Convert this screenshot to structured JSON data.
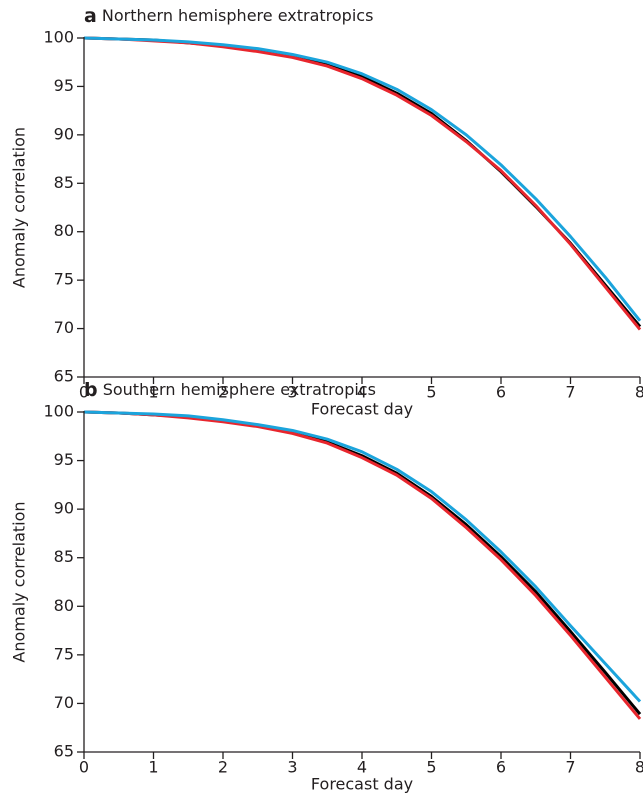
{
  "chart_data": [
    {
      "type": "line",
      "panel": "a",
      "title": "Northern hemisphere extratropics",
      "xlabel": "Forecast day",
      "ylabel": "Anomaly correlation",
      "x": [
        0,
        0.5,
        1,
        1.5,
        2,
        2.5,
        3,
        3.5,
        4,
        4.5,
        5,
        5.5,
        6,
        6.5,
        7,
        7.5,
        8
      ],
      "series": [
        {
          "color": "#000000",
          "values": [
            100,
            99.9,
            99.8,
            99.5,
            99.2,
            98.7,
            98.1,
            97.2,
            96.0,
            94.3,
            92.2,
            89.4,
            86.2,
            82.6,
            78.8,
            74.5,
            70.2
          ]
        },
        {
          "color": "#e8262d",
          "values": [
            100,
            99.9,
            99.7,
            99.5,
            99.1,
            98.6,
            98.0,
            97.1,
            95.8,
            94.1,
            92.0,
            89.3,
            86.3,
            82.7,
            78.7,
            74.3,
            69.9
          ]
        },
        {
          "color": "#1ba4dc",
          "values": [
            100,
            99.9,
            99.8,
            99.6,
            99.3,
            98.9,
            98.3,
            97.5,
            96.3,
            94.7,
            92.6,
            90.0,
            86.9,
            83.4,
            79.5,
            75.3,
            70.8
          ]
        }
      ],
      "xlim": [
        0,
        8
      ],
      "xticks": [
        0,
        1,
        2,
        3,
        4,
        5,
        6,
        7,
        8
      ],
      "ylim": [
        65,
        100
      ],
      "yticks": [
        65,
        70,
        75,
        80,
        85,
        90,
        95,
        100
      ]
    },
    {
      "type": "line",
      "panel": "b",
      "title": "Southern hemisphere extratropics",
      "xlabel": "Forecast day",
      "ylabel": "Anomaly correlation",
      "x": [
        0,
        0.5,
        1,
        1.5,
        2,
        2.5,
        3,
        3.5,
        4,
        4.5,
        5,
        5.5,
        6,
        6.5,
        7,
        7.5,
        8
      ],
      "series": [
        {
          "color": "#000000",
          "values": [
            100,
            99.9,
            99.7,
            99.5,
            99.1,
            98.6,
            97.9,
            96.9,
            95.5,
            93.7,
            91.3,
            88.4,
            85.1,
            81.5,
            77.4,
            73.2,
            68.9
          ]
        },
        {
          "color": "#e8262d",
          "values": [
            100,
            99.9,
            99.7,
            99.4,
            99.0,
            98.5,
            97.8,
            96.8,
            95.3,
            93.5,
            91.1,
            88.1,
            84.8,
            81.1,
            77.0,
            72.7,
            68.4
          ]
        },
        {
          "color": "#1ba4dc",
          "values": [
            100,
            99.9,
            99.8,
            99.6,
            99.2,
            98.7,
            98.1,
            97.2,
            95.9,
            94.1,
            91.8,
            88.9,
            85.6,
            82.0,
            78.0,
            74.1,
            70.2
          ]
        }
      ],
      "xlim": [
        0,
        8
      ],
      "xticks": [
        0,
        1,
        2,
        3,
        4,
        5,
        6,
        7,
        8
      ],
      "ylim": [
        65,
        100
      ],
      "yticks": [
        65,
        70,
        75,
        80,
        85,
        90,
        95,
        100
      ]
    }
  ]
}
